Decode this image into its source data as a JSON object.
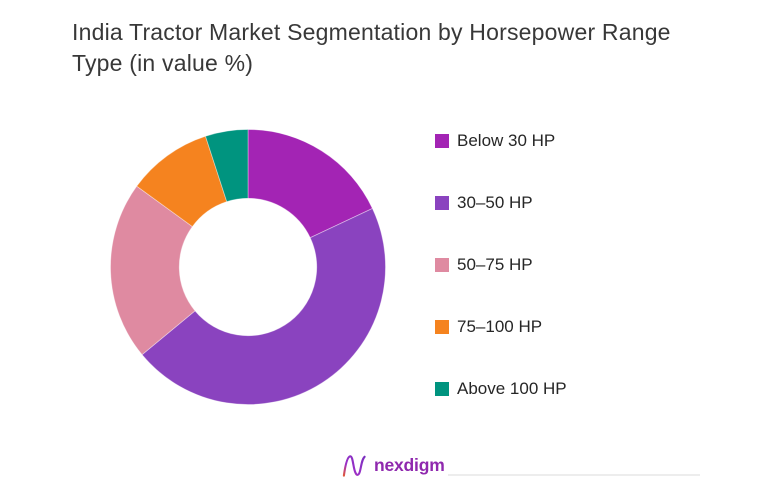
{
  "title": {
    "lines": [
      "India Tractor Market Segmentation by Horsepower Range",
      "Type (in value %)"
    ],
    "color": "#383838"
  },
  "chart_data": {
    "type": "pie",
    "subtype": "donut",
    "title": "India Tractor Market Segmentation by Horsepower Range Type (in value %)",
    "categories": [
      "Below 30 HP",
      "30–50 HP",
      "50–75 HP",
      "75–100 HP",
      "Above 100 HP"
    ],
    "values": [
      18,
      46,
      21,
      10,
      5
    ],
    "unit": "% of market value",
    "colors": [
      "#A324B4",
      "#8A43BF",
      "#DF8AA1",
      "#F5831F",
      "#00947F"
    ],
    "start_angle_deg": 0,
    "direction": "clockwise",
    "inner_radius_ratio": 0.5,
    "legend_position": "right",
    "data_labels": false,
    "background": "#ffffff"
  },
  "footer": {
    "brand_text": "nexdigm",
    "brand_text_color": "#8F28AE",
    "mark_gradient": [
      "#E0573B",
      "#9B30C8",
      "#7B2FBE"
    ]
  }
}
